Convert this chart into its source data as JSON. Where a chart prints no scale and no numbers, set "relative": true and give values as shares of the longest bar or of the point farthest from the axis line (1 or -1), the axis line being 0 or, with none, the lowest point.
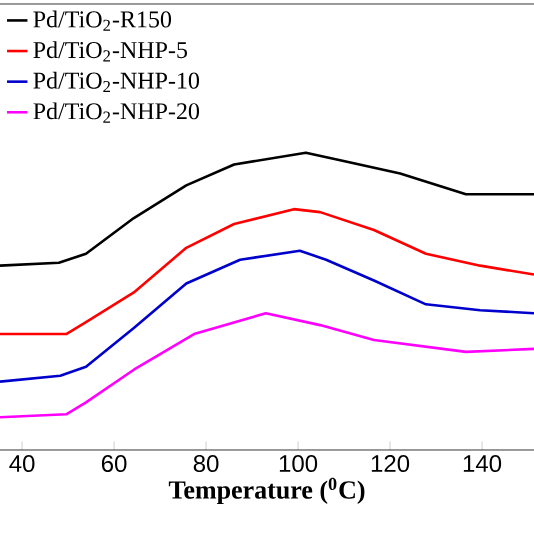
{
  "chart_data": {
    "type": "line",
    "xlabel": "Temperature ($^{0}$C)",
    "relative": true,
    "xlim": [
      35.2,
      151.3
    ],
    "xticks": [
      40,
      60,
      80,
      100,
      120,
      140
    ],
    "tick_labels": "x",
    "legend": "top left",
    "marker": "none",
    "line_style": "solid",
    "grid": false,
    "series": [
      {
        "name": "Pd/TiO$_{2}$-R150",
        "color": "#000000",
        "x": [
          35.2,
          48,
          53.9,
          64.3,
          75.7,
          86.1,
          101.7,
          110.4,
          122.2,
          136.5,
          151.3
        ],
        "values": [
          0.62,
          0.63,
          0.66,
          0.78,
          0.89,
          0.96,
          1,
          0.97,
          0.93,
          0.86,
          0.86
        ]
      },
      {
        "name": "Pd/TiO$_{2}$-NHP-5",
        "color": "#ff0000",
        "x": [
          35.2,
          49.6,
          53.9,
          64.3,
          75.7,
          86.1,
          99.1,
          104.8,
          116.5,
          127.8,
          139.6,
          151.3
        ],
        "values": [
          0.39,
          0.39,
          0.43,
          0.53,
          0.68,
          0.76,
          0.81,
          0.8,
          0.74,
          0.66,
          0.62,
          0.59
        ]
      },
      {
        "name": "Pd/TiO$_{2}$-NHP-10",
        "color": "#0000cc",
        "x": [
          35.2,
          48.3,
          53.9,
          64.3,
          75.7,
          87.4,
          100.4,
          106.1,
          116.5,
          127.8,
          139.6,
          151.3
        ],
        "values": [
          0.23,
          0.25,
          0.28,
          0.41,
          0.56,
          0.64,
          0.67,
          0.64,
          0.57,
          0.49,
          0.47,
          0.46
        ]
      },
      {
        "name": "Pd/TiO$_{2}$-NHP-20",
        "color": "#ff00ff",
        "x": [
          35.2,
          49.6,
          53.9,
          64.3,
          77.4,
          93.0,
          104.8,
          116.5,
          136.5,
          151.3
        ],
        "values": [
          0.11,
          0.12,
          0.16,
          0.27,
          0.39,
          0.46,
          0.42,
          0.37,
          0.33,
          0.34
        ]
      }
    ]
  }
}
